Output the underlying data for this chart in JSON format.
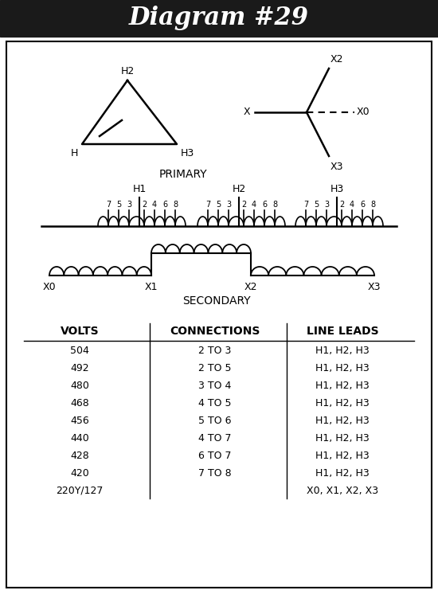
{
  "title": "Diagram #29",
  "title_fontsize": 22,
  "title_bg": "#1a1a1a",
  "title_color": "#ffffff",
  "border_color": "#000000",
  "bg_color": "#ffffff",
  "table_volts": [
    "504",
    "492",
    "480",
    "468",
    "456",
    "440",
    "428",
    "420",
    "220Y/127"
  ],
  "table_connections": [
    "2 TO 3",
    "2 TO 5",
    "3 TO 4",
    "4 TO 5",
    "5 TO 6",
    "4 TO 7",
    "6 TO 7",
    "7 TO 8",
    ""
  ],
  "table_leads": [
    "H1, H2, H3",
    "H1, H2, H3",
    "H1, H2, H3",
    "H1, H2, H3",
    "H1, H2, H3",
    "H1, H2, H3",
    "H1, H2, H3",
    "H1, H2, H3",
    "X0, X1, X2, X3"
  ],
  "primary_label": "PRIMARY",
  "secondary_label": "SECONDARY"
}
